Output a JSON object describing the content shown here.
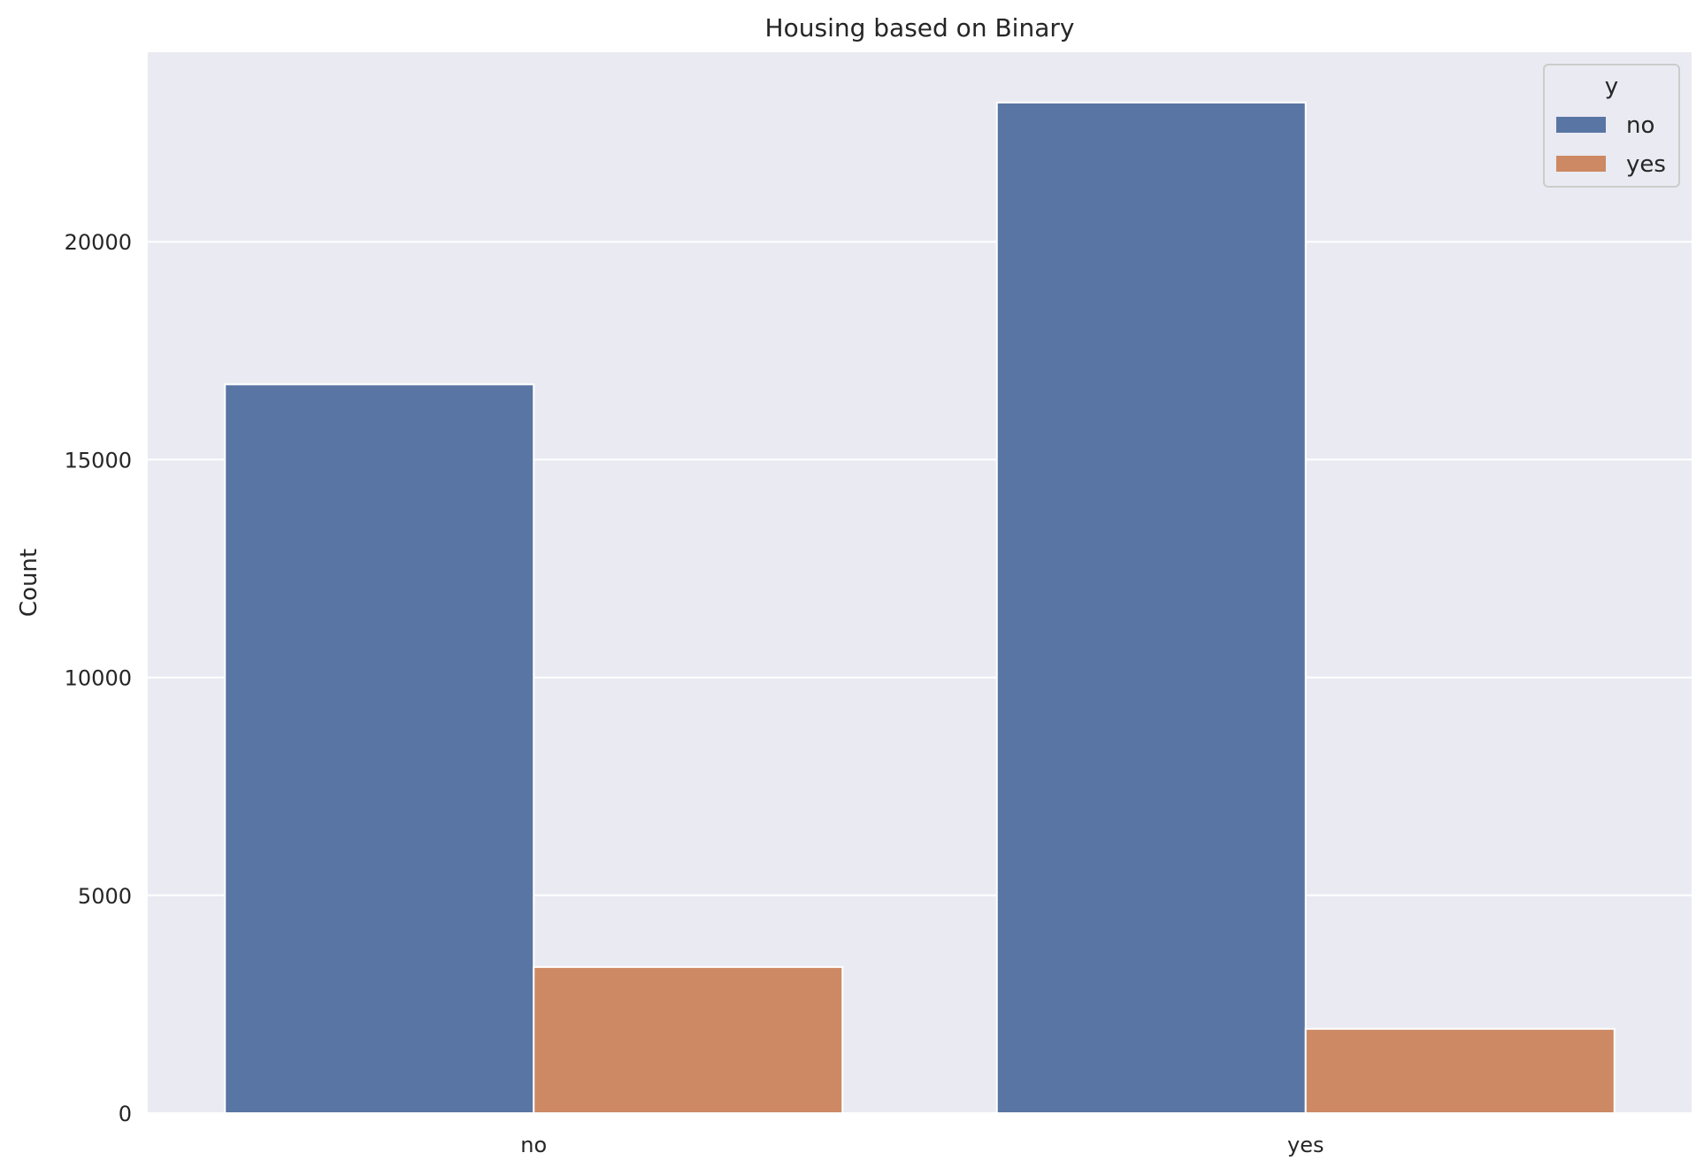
{
  "chart_data": {
    "type": "bar",
    "title": "Housing based on Binary",
    "xlabel": "",
    "ylabel": "Count",
    "categories": [
      "no",
      "yes"
    ],
    "series": [
      {
        "name": "no",
        "color": "#5975a4",
        "values": [
          16727,
          23195
        ]
      },
      {
        "name": "yes",
        "color": "#cc8963",
        "values": [
          3354,
          1935
        ]
      }
    ],
    "ylim": [
      0,
      24350
    ],
    "yticks": [
      0,
      5000,
      10000,
      15000,
      20000
    ],
    "ytick_labels": [
      "0",
      "5000",
      "10000",
      "15000",
      "20000"
    ],
    "legend": {
      "title": "y",
      "position": "top-right"
    },
    "grid": true,
    "background": "#eaeaf2",
    "grid_color": "#ffffff"
  }
}
